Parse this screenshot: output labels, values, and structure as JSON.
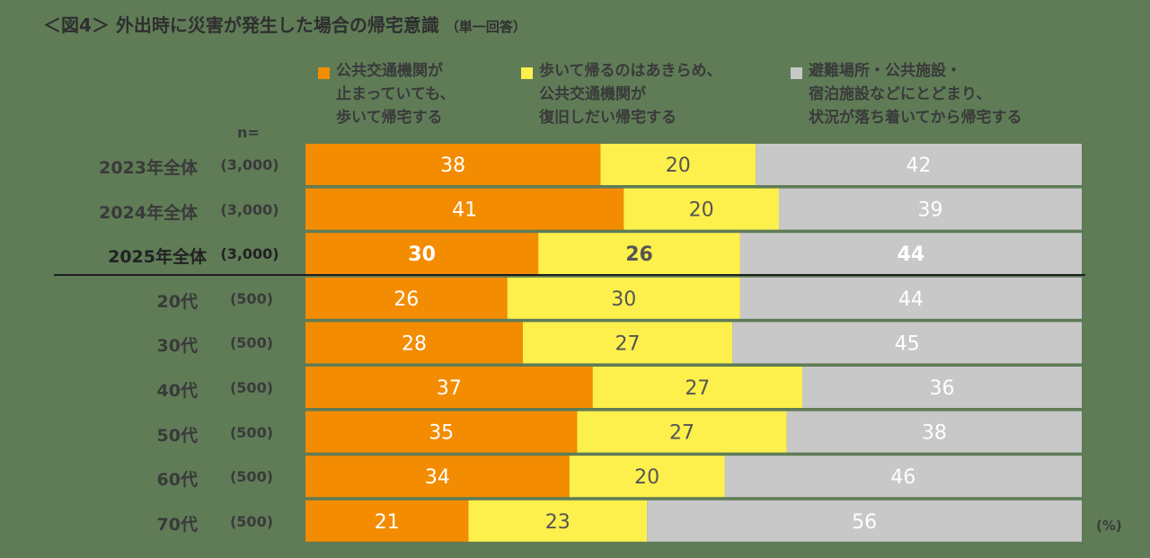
{
  "title": {
    "main": "＜図4＞ 外出時に災害が発生した場合の帰宅意識",
    "note": "（単一回答）"
  },
  "legend": [
    {
      "name": "公共交通機関が\n止まっていても、\n歩いて帰宅する",
      "color": "#f38c00"
    },
    {
      "name": "歩いて帰るのはあきらめ、\n公共交通機関が\n復旧しだい帰宅する",
      "color": "#fdf04c"
    },
    {
      "name": "避難場所・公共施設・\n宿泊施設などにとどまり、\n状況が落ち着いてから帰宅する",
      "color": "#c8c8c8"
    }
  ],
  "n_header": "n=",
  "unit": "(%)",
  "chart_data": {
    "type": "bar",
    "orientation": "horizontal",
    "stacked": true,
    "xlim": [
      0,
      100
    ],
    "categories": [
      "2023年全体",
      "2024年全体",
      "2025年全体",
      "20代",
      "30代",
      "40代",
      "50代",
      "60代",
      "70代"
    ],
    "n": [
      "(3,000)",
      "(3,000)",
      "(3,000)",
      "(500)",
      "(500)",
      "(500)",
      "(500)",
      "(500)",
      "(500)"
    ],
    "highlight_index": 2,
    "series": [
      {
        "name": "公共交通機関が止まっていても、歩いて帰宅する",
        "color": "#f38c00",
        "label_color": "#ffffff",
        "values": [
          38,
          41,
          30,
          26,
          28,
          37,
          35,
          34,
          21
        ]
      },
      {
        "name": "歩いて帰るのはあきらめ、公共交通機関が復旧しだい帰宅する",
        "color": "#fdf04c",
        "label_color": "#555555",
        "values": [
          20,
          20,
          26,
          30,
          27,
          27,
          27,
          20,
          23
        ]
      },
      {
        "name": "避難場所・公共施設・宿泊施設などにとどまり、状況が落ち着いてから帰宅する",
        "color": "#c8c8c8",
        "label_color": "#ffffff",
        "values": [
          42,
          39,
          44,
          44,
          45,
          36,
          38,
          46,
          56
        ]
      }
    ]
  }
}
